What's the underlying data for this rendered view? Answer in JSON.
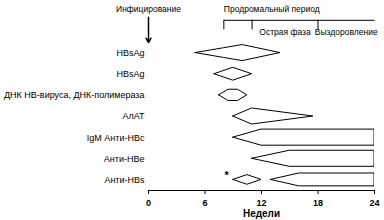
{
  "chart_data": {
    "type": "timeline",
    "xlabel": "Недели",
    "xlim": [
      0,
      24
    ],
    "xticks": [
      0,
      6,
      12,
      18,
      24
    ],
    "phases": [
      {
        "label": "Продромальный период",
        "start": 8
      },
      {
        "label": "Острая фаза",
        "start": 11
      },
      {
        "label": "Выздоровление",
        "start": 18
      }
    ],
    "annotations": [
      {
        "label": "Инфицирование",
        "x": 0
      },
      {
        "label": "*",
        "x": 8.3,
        "row": 6
      }
    ],
    "series": [
      {
        "name": "HBsAg",
        "segments": [
          {
            "x": [
              5,
              8,
              10,
              14
            ],
            "values": [
              0,
              0.6,
              1,
              0
            ]
          }
        ]
      },
      {
        "name": "HBsAg",
        "segments": [
          {
            "x": [
              7,
              9,
              11
            ],
            "values": [
              0,
              0.8,
              0
            ]
          }
        ]
      },
      {
        "name": "ДНК НВ-вируса, ДНК-полимераза",
        "segments": [
          {
            "x": [
              7.5,
              8.5,
              9.5,
              10.5
            ],
            "values": [
              0,
              0.7,
              0.7,
              0
            ]
          }
        ]
      },
      {
        "name": "АлАТ",
        "segments": [
          {
            "x": [
              9,
              11,
              17.5
            ],
            "values": [
              0,
              1,
              0
            ]
          }
        ]
      },
      {
        "name": "IgM Анти-НВс",
        "segments": [
          {
            "x": [
              9,
              12,
              24
            ],
            "values": [
              0,
              1,
              1
            ]
          }
        ]
      },
      {
        "name": "Анти-НВе",
        "segments": [
          {
            "x": [
              11,
              15,
              24
            ],
            "values": [
              0,
              1,
              1
            ]
          }
        ]
      },
      {
        "name": "Анти-HBs",
        "segments": [
          {
            "x": [
              9,
              10.5,
              12
            ],
            "values": [
              0,
              0.6,
              0
            ]
          },
          {
            "x": [
              13,
              16,
              24
            ],
            "values": [
              0,
              0.8,
              0.8
            ]
          }
        ]
      }
    ]
  }
}
